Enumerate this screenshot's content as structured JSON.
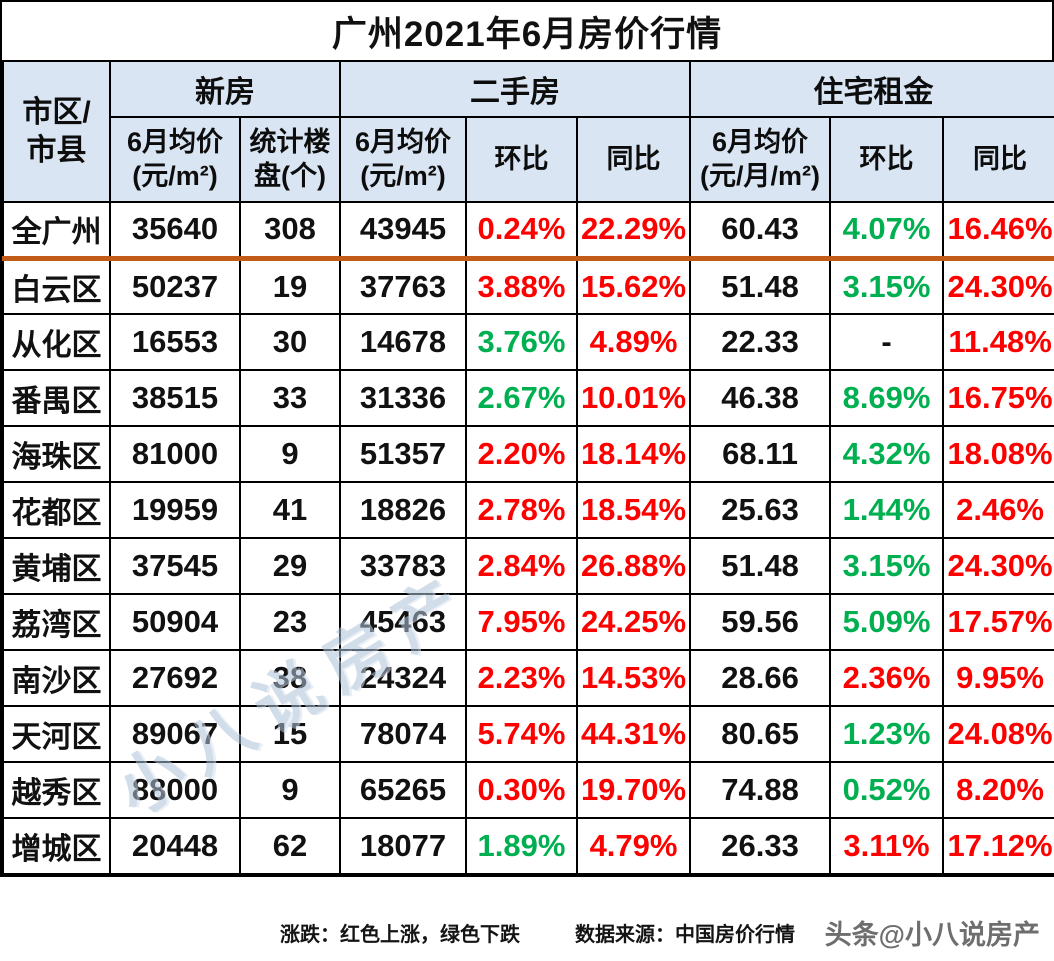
{
  "title": "广州2021年6月房价行情",
  "colors": {
    "up": "#fe0000",
    "down": "#00b050",
    "neutral": "#111111",
    "header_bg": "#d9e5f2",
    "total_divider": "#c25b17"
  },
  "table": {
    "corner_header": "市区/市县",
    "groups": [
      {
        "label": "新房"
      },
      {
        "label": "二手房"
      },
      {
        "label": "住宅租金"
      }
    ],
    "subheaders": [
      "6月均价\n(元/m²)",
      "统计楼\n盘(个)",
      "6月均价\n(元/m²)",
      "环比",
      "同比",
      "6月均价\n(元/月/m²)",
      "环比",
      "同比"
    ],
    "rows": [
      {
        "district": "全广州",
        "new_price": "35640",
        "new_count": "308",
        "second_price": "43945",
        "second_mom": {
          "v": "0.24%",
          "c": "up"
        },
        "second_yoy": {
          "v": "22.29%",
          "c": "up"
        },
        "rent_price": "60.43",
        "rent_mom": {
          "v": "4.07%",
          "c": "down"
        },
        "rent_yoy": {
          "v": "16.46%",
          "c": "up"
        }
      },
      {
        "district": "白云区",
        "new_price": "50237",
        "new_count": "19",
        "second_price": "37763",
        "second_mom": {
          "v": "3.88%",
          "c": "up"
        },
        "second_yoy": {
          "v": "15.62%",
          "c": "up"
        },
        "rent_price": "51.48",
        "rent_mom": {
          "v": "3.15%",
          "c": "down"
        },
        "rent_yoy": {
          "v": "24.30%",
          "c": "up"
        }
      },
      {
        "district": "从化区",
        "new_price": "16553",
        "new_count": "30",
        "second_price": "14678",
        "second_mom": {
          "v": "3.76%",
          "c": "down"
        },
        "second_yoy": {
          "v": "4.89%",
          "c": "up"
        },
        "rent_price": "22.33",
        "rent_mom": {
          "v": "-",
          "c": "neutral"
        },
        "rent_yoy": {
          "v": "11.48%",
          "c": "up"
        }
      },
      {
        "district": "番禺区",
        "new_price": "38515",
        "new_count": "33",
        "second_price": "31336",
        "second_mom": {
          "v": "2.67%",
          "c": "down"
        },
        "second_yoy": {
          "v": "10.01%",
          "c": "up"
        },
        "rent_price": "46.38",
        "rent_mom": {
          "v": "8.69%",
          "c": "down"
        },
        "rent_yoy": {
          "v": "16.75%",
          "c": "up"
        }
      },
      {
        "district": "海珠区",
        "new_price": "81000",
        "new_count": "9",
        "second_price": "51357",
        "second_mom": {
          "v": "2.20%",
          "c": "up"
        },
        "second_yoy": {
          "v": "18.14%",
          "c": "up"
        },
        "rent_price": "68.11",
        "rent_mom": {
          "v": "4.32%",
          "c": "down"
        },
        "rent_yoy": {
          "v": "18.08%",
          "c": "up"
        }
      },
      {
        "district": "花都区",
        "new_price": "19959",
        "new_count": "41",
        "second_price": "18826",
        "second_mom": {
          "v": "2.78%",
          "c": "up"
        },
        "second_yoy": {
          "v": "18.54%",
          "c": "up"
        },
        "rent_price": "25.63",
        "rent_mom": {
          "v": "1.44%",
          "c": "down"
        },
        "rent_yoy": {
          "v": "2.46%",
          "c": "up"
        }
      },
      {
        "district": "黄埔区",
        "new_price": "37545",
        "new_count": "29",
        "second_price": "33783",
        "second_mom": {
          "v": "2.84%",
          "c": "up"
        },
        "second_yoy": {
          "v": "26.88%",
          "c": "up"
        },
        "rent_price": "51.48",
        "rent_mom": {
          "v": "3.15%",
          "c": "down"
        },
        "rent_yoy": {
          "v": "24.30%",
          "c": "up"
        }
      },
      {
        "district": "荔湾区",
        "new_price": "50904",
        "new_count": "23",
        "second_price": "45463",
        "second_mom": {
          "v": "7.95%",
          "c": "up"
        },
        "second_yoy": {
          "v": "24.25%",
          "c": "up"
        },
        "rent_price": "59.56",
        "rent_mom": {
          "v": "5.09%",
          "c": "down"
        },
        "rent_yoy": {
          "v": "17.57%",
          "c": "up"
        }
      },
      {
        "district": "南沙区",
        "new_price": "27692",
        "new_count": "38",
        "second_price": "24324",
        "second_mom": {
          "v": "2.23%",
          "c": "up"
        },
        "second_yoy": {
          "v": "14.53%",
          "c": "up"
        },
        "rent_price": "28.66",
        "rent_mom": {
          "v": "2.36%",
          "c": "up"
        },
        "rent_yoy": {
          "v": "9.95%",
          "c": "up"
        }
      },
      {
        "district": "天河区",
        "new_price": "89067",
        "new_count": "15",
        "second_price": "78074",
        "second_mom": {
          "v": "5.74%",
          "c": "up"
        },
        "second_yoy": {
          "v": "44.31%",
          "c": "up"
        },
        "rent_price": "80.65",
        "rent_mom": {
          "v": "1.23%",
          "c": "down"
        },
        "rent_yoy": {
          "v": "24.08%",
          "c": "up"
        }
      },
      {
        "district": "越秀区",
        "new_price": "88000",
        "new_count": "9",
        "second_price": "65265",
        "second_mom": {
          "v": "0.30%",
          "c": "up"
        },
        "second_yoy": {
          "v": "19.70%",
          "c": "up"
        },
        "rent_price": "74.88",
        "rent_mom": {
          "v": "0.52%",
          "c": "down"
        },
        "rent_yoy": {
          "v": "8.20%",
          "c": "up"
        }
      },
      {
        "district": "增城区",
        "new_price": "20448",
        "new_count": "62",
        "second_price": "18077",
        "second_mom": {
          "v": "1.89%",
          "c": "down"
        },
        "second_yoy": {
          "v": "4.79%",
          "c": "up"
        },
        "rent_price": "26.33",
        "rent_mom": {
          "v": "3.11%",
          "c": "up"
        },
        "rent_yoy": {
          "v": "17.12%",
          "c": "up"
        }
      }
    ]
  },
  "footer": {
    "legend": "涨跌：红色上涨，绿色下跌",
    "source": "数据来源：中国房价行情",
    "corner_watermark": "头条@小八说房产"
  },
  "diagonal_watermark": "小八说房产"
}
